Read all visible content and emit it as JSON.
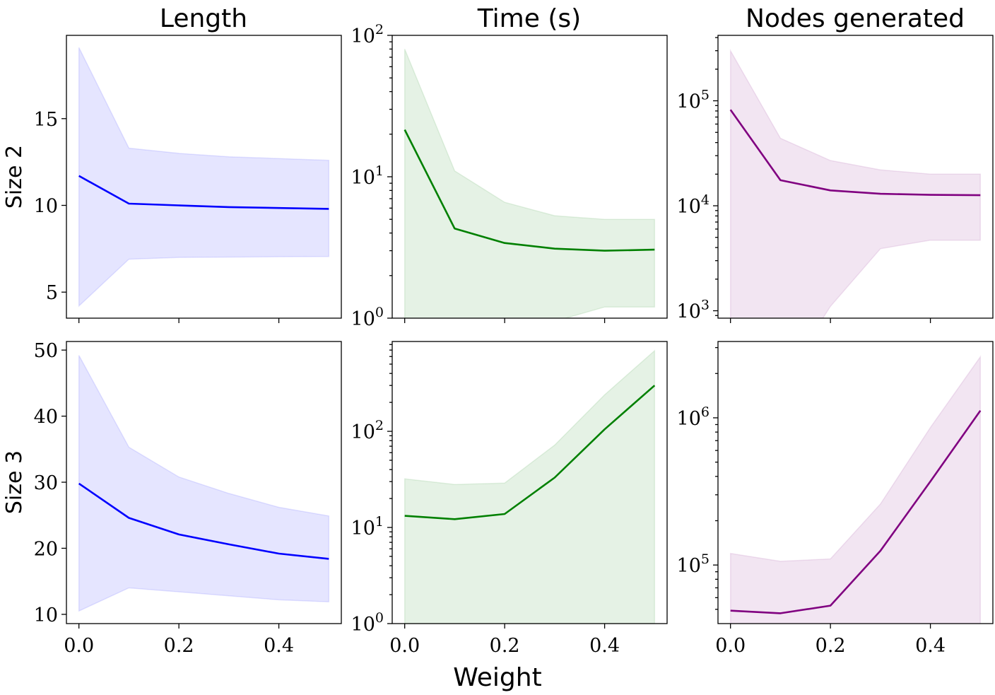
{
  "figure": {
    "column_titles": [
      "Length",
      "Time (s)",
      "Nodes generated"
    ],
    "row_labels": [
      "Size 2",
      "Size 3"
    ],
    "xlabel": "Weight",
    "x_tick_labels": [
      "0.0",
      "0.2",
      "0.4"
    ]
  },
  "colors": {
    "length": "#0000ff",
    "time": "#008000",
    "nodes": "#800080"
  },
  "chart_data": [
    {
      "id": "length-size2",
      "type": "line",
      "title": "Length",
      "row": "Size 2",
      "x": [
        0.0,
        0.1,
        0.2,
        0.3,
        0.4,
        0.5
      ],
      "series": [
        {
          "values": [
            11.7,
            10.1,
            10.0,
            9.9,
            9.85,
            9.8
          ]
        }
      ],
      "band": {
        "lower": [
          4.2,
          6.9,
          7.0,
          7.02,
          7.04,
          7.05
        ],
        "upper": [
          19.1,
          13.3,
          13.0,
          12.8,
          12.7,
          12.6
        ]
      },
      "xlim": [
        -0.025,
        0.525
      ],
      "ylim": [
        3.5,
        19.8
      ],
      "yscale": "linear",
      "yticks": [
        5,
        10,
        15
      ],
      "ytick_labels": [
        "5",
        "10",
        "15"
      ],
      "x_tick_labels_visible": false,
      "color": "#0000ff",
      "grid": false
    },
    {
      "id": "time-size2",
      "type": "line",
      "title": "Time (s)",
      "row": "Size 2",
      "x": [
        0.0,
        0.1,
        0.2,
        0.3,
        0.4,
        0.5
      ],
      "series": [
        {
          "values": [
            21.5,
            4.3,
            3.4,
            3.1,
            3.0,
            3.05
          ]
        }
      ],
      "band": {
        "lower": [
          0.05,
          0.1,
          0.2,
          0.95,
          1.2,
          1.2
        ],
        "upper": [
          80,
          11,
          6.6,
          5.3,
          5.0,
          5.0
        ]
      },
      "xlim": [
        -0.025,
        0.525
      ],
      "ylim": [
        1,
        100
      ],
      "yscale": "log",
      "yticks": [
        1,
        10,
        100
      ],
      "ytick_labels": [
        {
          "base": "10",
          "exp": "0"
        },
        {
          "base": "10",
          "exp": "1"
        },
        {
          "base": "10",
          "exp": "2"
        }
      ],
      "x_tick_labels_visible": false,
      "color": "#008000",
      "grid": false
    },
    {
      "id": "nodes-size2",
      "type": "line",
      "title": "Nodes generated",
      "row": "Size 2",
      "x": [
        0.0,
        0.1,
        0.2,
        0.3,
        0.4,
        0.5
      ],
      "series": [
        {
          "values": [
            82000,
            17500,
            14000,
            13000,
            12700,
            12600
          ]
        }
      ],
      "band": {
        "lower": [
          100,
          200,
          1100,
          3900,
          4700,
          4700
        ],
        "upper": [
          300000,
          44000,
          27000,
          22000,
          20000,
          20000
        ]
      },
      "xlim": [
        -0.025,
        0.525
      ],
      "ylim": [
        850,
        420000
      ],
      "yscale": "log",
      "yticks": [
        1000,
        10000,
        100000
      ],
      "ytick_labels": [
        {
          "base": "10",
          "exp": "3"
        },
        {
          "base": "10",
          "exp": "4"
        },
        {
          "base": "10",
          "exp": "5"
        }
      ],
      "x_tick_labels_visible": false,
      "color": "#800080",
      "grid": false
    },
    {
      "id": "length-size3",
      "type": "line",
      "title": "Length",
      "row": "Size 3",
      "x": [
        0.0,
        0.1,
        0.2,
        0.3,
        0.4,
        0.5
      ],
      "series": [
        {
          "values": [
            29.8,
            24.6,
            22.1,
            20.6,
            19.2,
            18.4
          ]
        }
      ],
      "band": {
        "lower": [
          10.5,
          14.0,
          13.4,
          12.8,
          12.2,
          11.9
        ],
        "upper": [
          49.2,
          35.3,
          30.8,
          28.3,
          26.2,
          24.9
        ]
      },
      "xlim": [
        -0.025,
        0.525
      ],
      "ylim": [
        8.6,
        51.3
      ],
      "yscale": "linear",
      "yticks": [
        10,
        20,
        30,
        40,
        50
      ],
      "ytick_labels": [
        "10",
        "20",
        "30",
        "40",
        "50"
      ],
      "x_tick_labels_visible": true,
      "color": "#0000ff",
      "grid": false
    },
    {
      "id": "time-size3",
      "type": "line",
      "title": "Time (s)",
      "row": "Size 3",
      "x": [
        0.0,
        0.1,
        0.2,
        0.3,
        0.4,
        0.5
      ],
      "series": [
        {
          "values": [
            13.2,
            12.2,
            13.8,
            33.0,
            105,
            300
          ]
        }
      ],
      "band": {
        "lower": [
          1,
          1,
          1,
          1,
          1,
          1
        ],
        "upper": [
          32,
          28,
          29,
          72,
          240,
          690
        ]
      },
      "xlim": [
        -0.025,
        0.525
      ],
      "ylim": [
        1,
        860
      ],
      "yscale": "log",
      "yticks": [
        1,
        10,
        100
      ],
      "ytick_labels": [
        {
          "base": "10",
          "exp": "0"
        },
        {
          "base": "10",
          "exp": "1"
        },
        {
          "base": "10",
          "exp": "2"
        }
      ],
      "x_tick_labels_visible": true,
      "color": "#008000",
      "grid": false
    },
    {
      "id": "nodes-size3",
      "type": "line",
      "title": "Nodes generated",
      "row": "Size 3",
      "x": [
        0.0,
        0.1,
        0.2,
        0.3,
        0.4,
        0.5
      ],
      "series": [
        {
          "values": [
            49000,
            47000,
            53000,
            125000,
            370000,
            1120000
          ]
        }
      ],
      "band": {
        "lower": [
          10000,
          10000,
          10000,
          10000,
          10000,
          10000
        ],
        "upper": [
          120000,
          106000,
          110000,
          260000,
          860000,
          2600000
        ]
      },
      "xlim": [
        -0.025,
        0.525
      ],
      "ylim": [
        40000,
        3300000
      ],
      "yscale": "log",
      "yticks": [
        100000,
        1000000
      ],
      "ytick_labels": [
        {
          "base": "10",
          "exp": "5"
        },
        {
          "base": "10",
          "exp": "6"
        }
      ],
      "x_tick_labels_visible": true,
      "color": "#800080",
      "grid": false
    }
  ]
}
